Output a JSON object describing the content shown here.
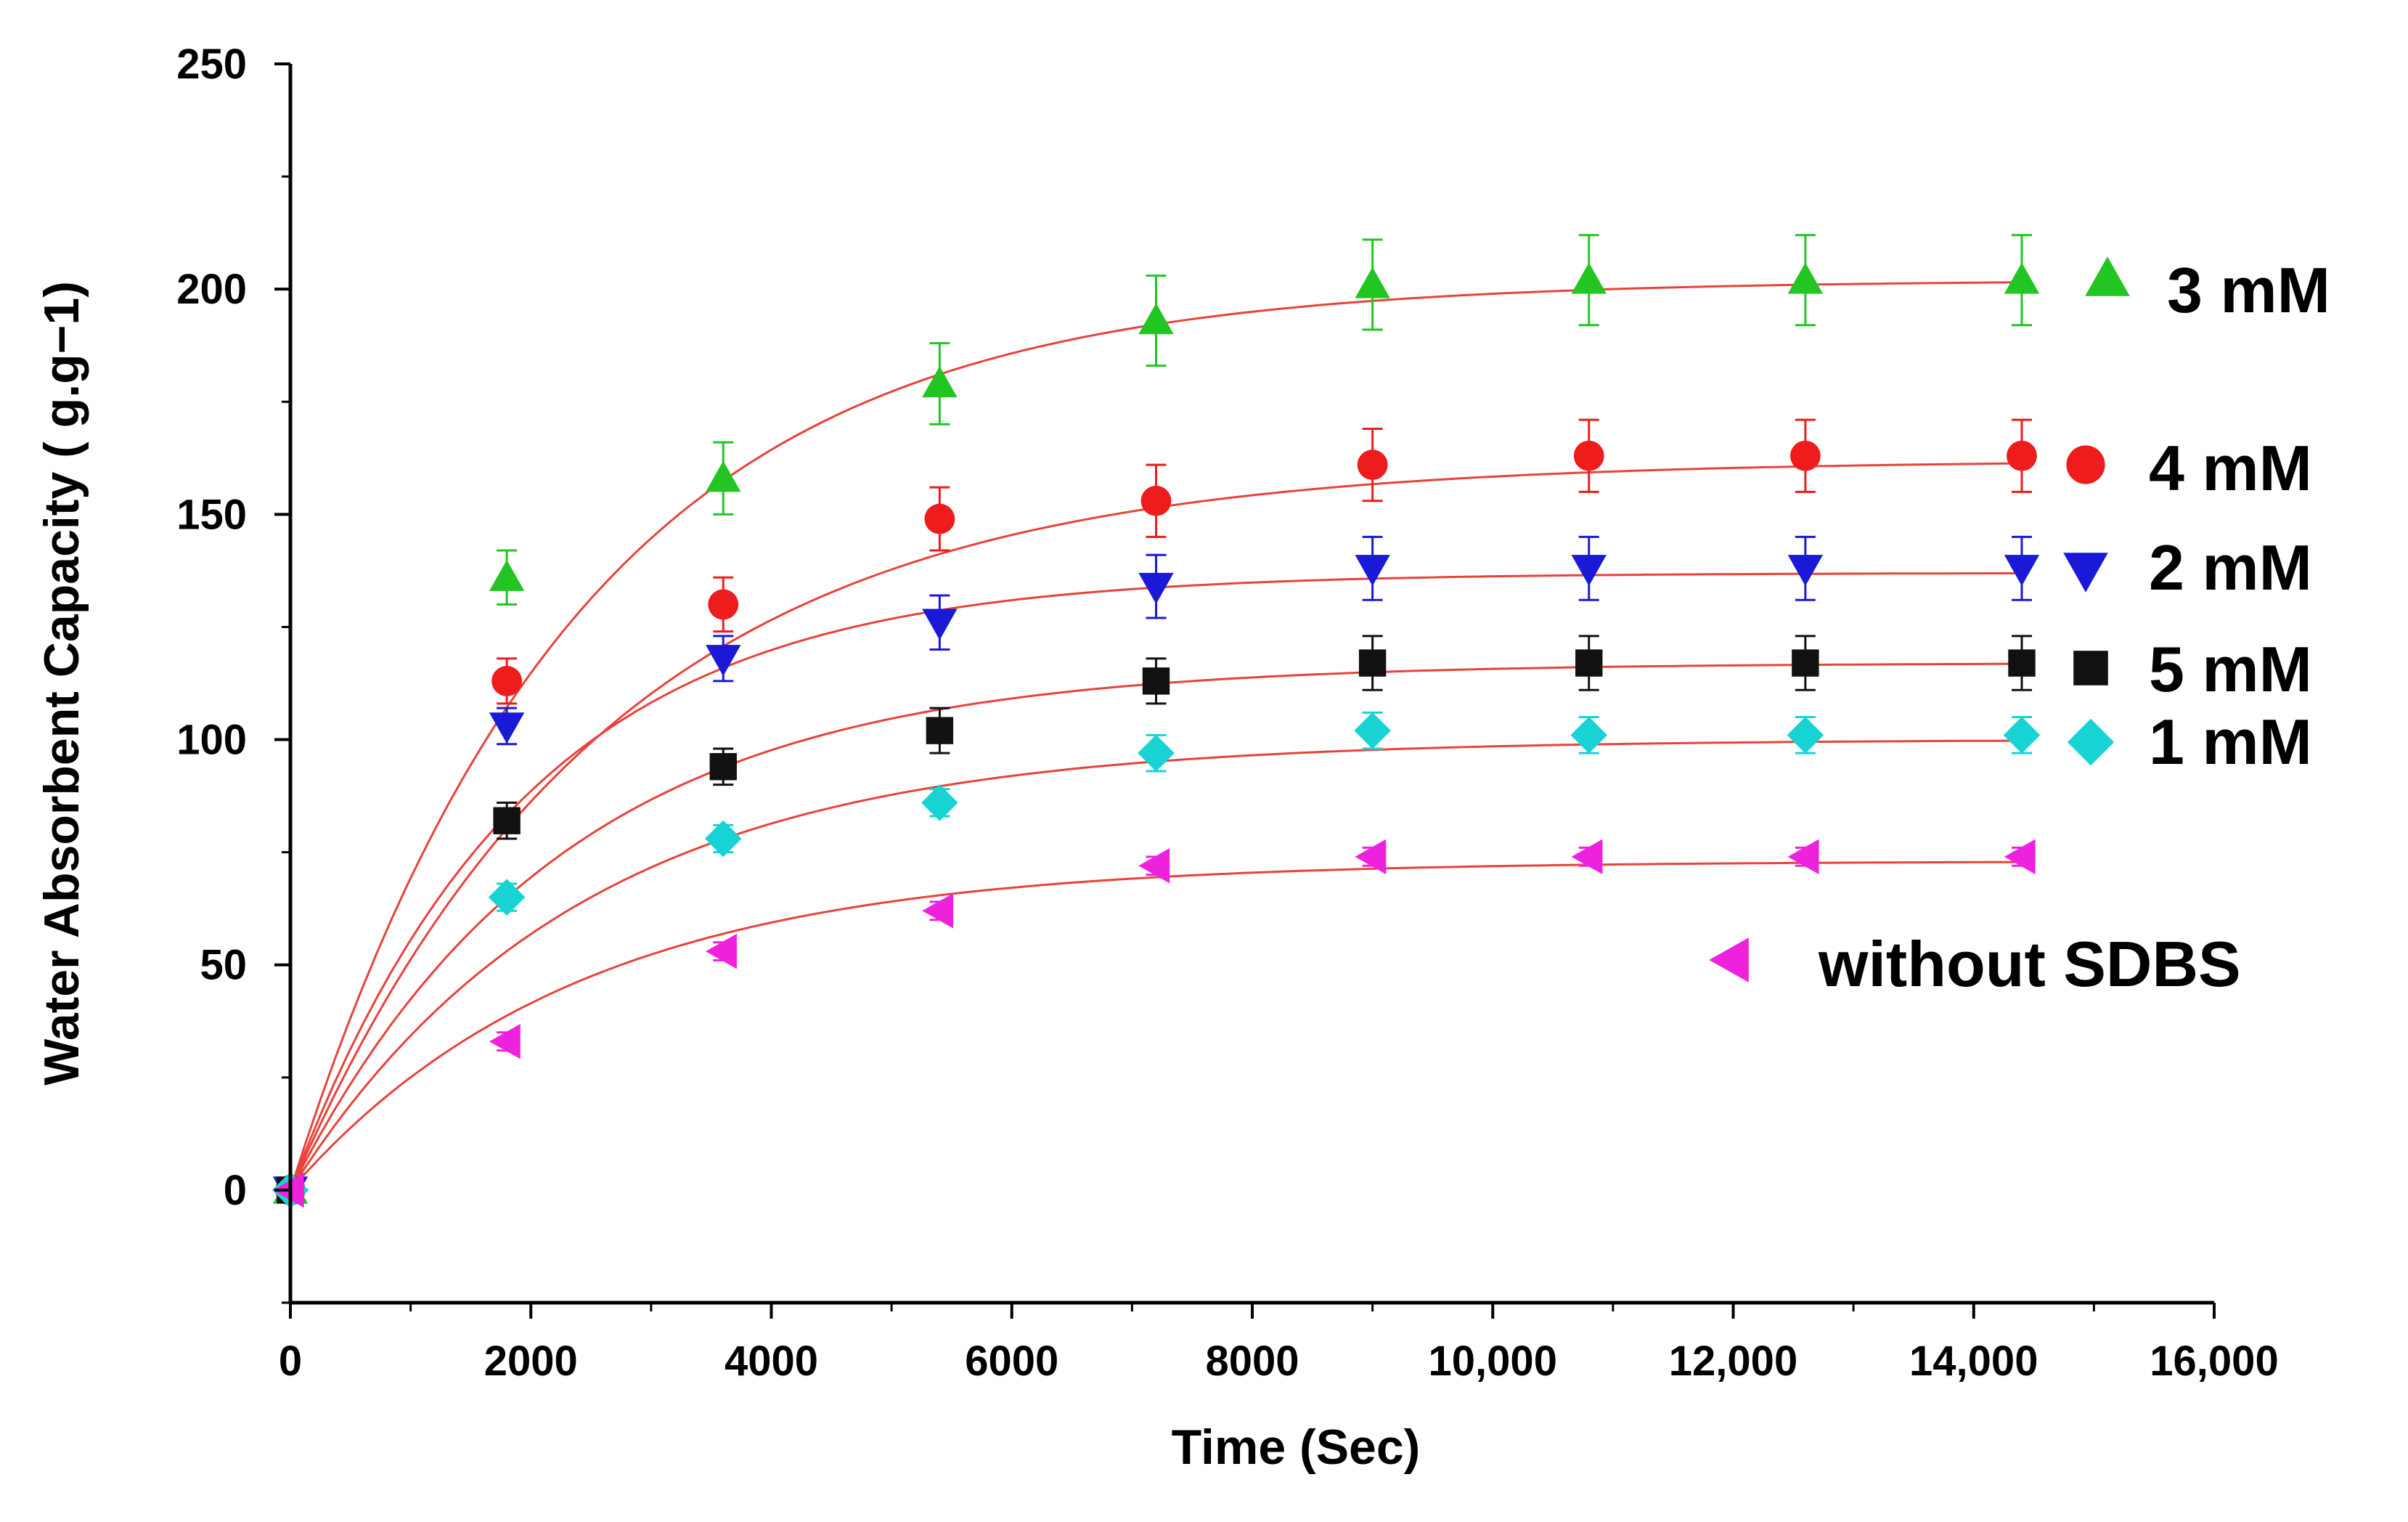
{
  "chart_data": {
    "type": "scatter",
    "title": "",
    "xlabel": "Time (Sec)",
    "ylabel": "Water Absorbent Capacity ( g.g−1)",
    "xlim": [
      0,
      16000
    ],
    "ylim": [
      -25,
      250
    ],
    "xticks": [
      0,
      2000,
      4000,
      6000,
      8000,
      10000,
      12000,
      14000,
      16000
    ],
    "xtick_labels": [
      "0",
      "2000",
      "4000",
      "6000",
      "8000",
      "10,000",
      "12,000",
      "14,000",
      "16,000"
    ],
    "yticks": [
      0,
      50,
      100,
      150,
      200,
      250
    ],
    "ytick_labels": [
      "0",
      "50",
      "100",
      "150",
      "200",
      "250"
    ],
    "grid": false,
    "fit_line_color": "#e8433b",
    "x": [
      0,
      1800,
      3600,
      5400,
      7200,
      9000,
      10800,
      12600,
      14400
    ],
    "series": [
      {
        "name": "3 mM",
        "marker": "triangle-up",
        "color": "#22c522",
        "values": [
          0,
          136,
          158,
          179,
          193,
          201,
          202,
          202,
          202
        ],
        "errors": [
          0,
          6,
          8,
          9,
          10,
          10,
          10,
          10,
          10
        ],
        "fit": {
          "plateau": 202,
          "k": 0.00042
        }
      },
      {
        "name": "4 mM",
        "marker": "circle",
        "color": "#ee1c1c",
        "values": [
          0,
          113,
          130,
          149,
          153,
          161,
          163,
          163,
          163
        ],
        "errors": [
          0,
          5,
          6,
          7,
          8,
          8,
          8,
          8,
          8
        ],
        "fit": {
          "plateau": 162,
          "k": 0.00038
        }
      },
      {
        "name": "2 mM",
        "marker": "triangle-down",
        "color": "#1a1ad6",
        "values": [
          0,
          103,
          118,
          126,
          134,
          138,
          138,
          138,
          138
        ],
        "errors": [
          0,
          4,
          5,
          6,
          7,
          7,
          7,
          7,
          7
        ],
        "fit": {
          "plateau": 137,
          "k": 0.00052
        }
      },
      {
        "name": "5 mM",
        "marker": "square",
        "color": "#111111",
        "values": [
          0,
          82,
          94,
          102,
          113,
          117,
          117,
          117,
          117
        ],
        "errors": [
          0,
          4,
          4,
          5,
          5,
          6,
          6,
          6,
          6
        ],
        "fit": {
          "plateau": 117,
          "k": 0.00045
        }
      },
      {
        "name": "1 mM",
        "marker": "diamond",
        "color": "#18d3d3",
        "values": [
          0,
          65,
          78,
          86,
          97,
          102,
          101,
          101,
          101
        ],
        "errors": [
          0,
          3,
          3,
          3,
          4,
          4,
          4,
          4,
          4
        ],
        "fit": {
          "plateau": 100,
          "k": 0.00042
        }
      },
      {
        "name": "without SDBS",
        "marker": "triangle-left",
        "color": "#ee22dd",
        "values": [
          0,
          33,
          53,
          62,
          72,
          74,
          74,
          74,
          74
        ],
        "errors": [
          0,
          2,
          2,
          2,
          2,
          2,
          2,
          2,
          2
        ],
        "fit": {
          "plateau": 73,
          "k": 0.00042
        }
      }
    ]
  }
}
